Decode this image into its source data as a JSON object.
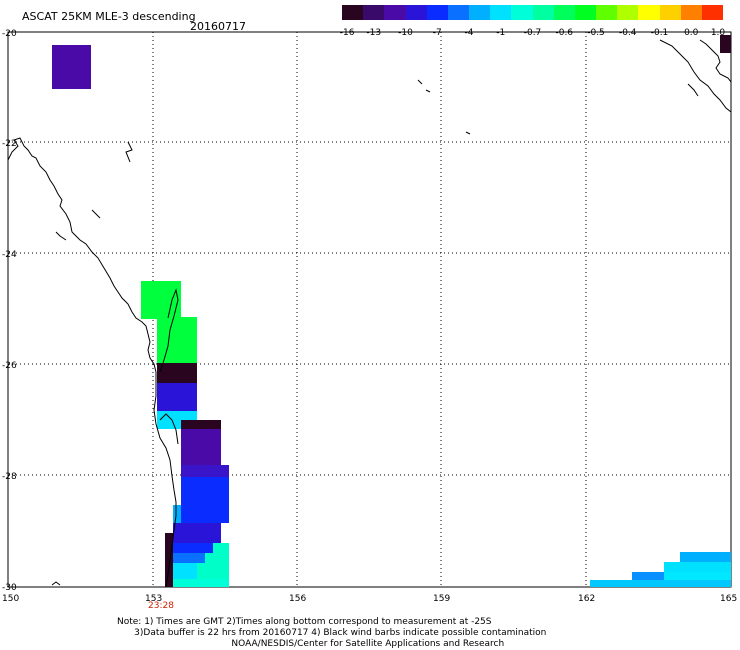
{
  "header": {
    "title": "ASCAT 25KM MLE-3 descending",
    "date": "20160717"
  },
  "colorbar": {
    "colors": [
      "#2a0520",
      "#3a0a6a",
      "#4a0aa8",
      "#2a14d8",
      "#0a2cff",
      "#0a70ff",
      "#00b0ff",
      "#00e0ff",
      "#00ffd8",
      "#00ffa0",
      "#00ff5a",
      "#00ff20",
      "#60ff00",
      "#b0ff00",
      "#ffff00",
      "#ffd000",
      "#ff8000",
      "#ff3000"
    ],
    "labels": [
      "-16",
      "-13",
      "-10",
      "-7",
      "-4",
      "-1",
      "-0.7",
      "-0.6",
      "-0.5",
      "-0.4",
      "-0.1",
      "0.0",
      "1.0"
    ]
  },
  "axes": {
    "x_ticks": [
      "150",
      "153",
      "156",
      "159",
      "162",
      "165"
    ],
    "y_ticks": [
      "-20",
      "-22",
      "-24",
      "-26",
      "-28",
      "-30"
    ],
    "time_label": "23:28"
  },
  "footer": {
    "line1": "Note: 1) Times are GMT 2)Times along bottom correspond to measurement at -25S",
    "line2": "      3)Data buffer is 22 hrs from 20160717 4) Black wind barbs indicate possible contamination",
    "line3": "                                        NOAA/NESDIS/Center for Satellite Applications and Research"
  },
  "swath": {
    "unit": "MLE",
    "cells": [
      {
        "lon": 151.3,
        "lat": -20.6,
        "c": "#4a0aa8"
      },
      {
        "lon": 153.2,
        "lat": -25.3,
        "c": "#00ff3c"
      },
      {
        "lon": 153.5,
        "lat": -26.2,
        "c": "#2a0520"
      },
      {
        "lon": 153.5,
        "lat": -26.7,
        "c": "#2a14d8"
      },
      {
        "lon": 154.0,
        "lat": -27.6,
        "c": "#4a0aa8"
      },
      {
        "lon": 154.1,
        "lat": -28.4,
        "c": "#0a2cff"
      },
      {
        "lon": 153.9,
        "lat": -29.4,
        "c": "#0a2cff"
      },
      {
        "lon": 153.8,
        "lat": -29.9,
        "c": "#00ffc8"
      },
      {
        "lon": 164.6,
        "lat": -29.6,
        "c": "#00e0ff"
      },
      {
        "lon": 164.8,
        "lat": -20.2,
        "c": "#2a0520"
      }
    ]
  }
}
